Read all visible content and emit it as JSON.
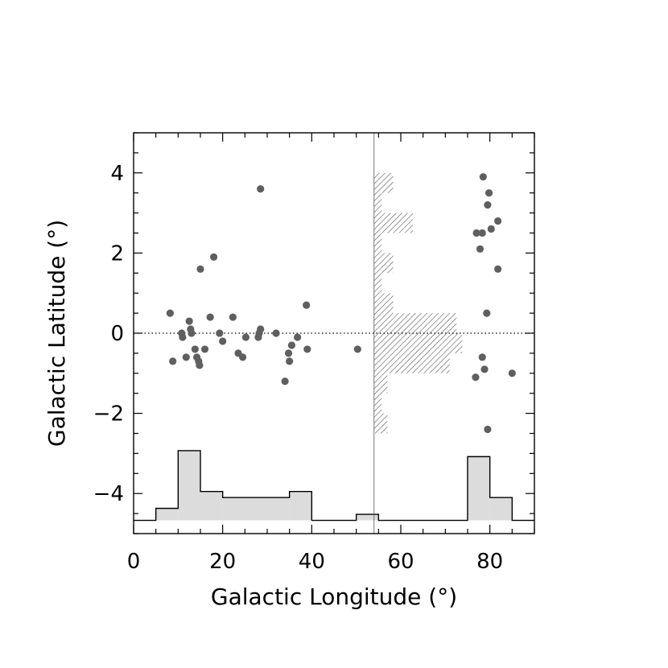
{
  "chart_data": {
    "type": "scatter",
    "xlabel": "Galactic Longitude (°)",
    "ylabel": "Galactic Latitude (°)",
    "xlim": [
      0,
      90
    ],
    "ylim": [
      -5,
      5
    ],
    "x_ticks": [
      0,
      20,
      40,
      60,
      80
    ],
    "x_tick_labels": [
      "0",
      "20",
      "40",
      "60",
      "80"
    ],
    "y_ticks": [
      -4,
      -2,
      0,
      2,
      4
    ],
    "y_tick_labels": [
      "−4",
      "−2",
      "0",
      "2",
      "4"
    ],
    "grid": false,
    "colors": {
      "points": "#5f5f5f",
      "longitude_histogram_fill": "#dcdcdc",
      "latitude_histogram_hatch": "#555555",
      "axes": "#000000"
    },
    "reference_lines": {
      "zero_latitude": 0,
      "vertical_divider_longitude": 54
    },
    "points": [
      {
        "x": 8.2,
        "y": 0.5
      },
      {
        "x": 8.8,
        "y": -0.7
      },
      {
        "x": 10.8,
        "y": 0.0
      },
      {
        "x": 11.0,
        "y": -0.1
      },
      {
        "x": 11.8,
        "y": -0.6
      },
      {
        "x": 12.5,
        "y": 0.3
      },
      {
        "x": 12.8,
        "y": 0.1
      },
      {
        "x": 13.0,
        "y": 0.0
      },
      {
        "x": 13.8,
        "y": -0.4
      },
      {
        "x": 14.2,
        "y": -0.6
      },
      {
        "x": 14.6,
        "y": -0.7
      },
      {
        "x": 14.8,
        "y": -0.8
      },
      {
        "x": 15.0,
        "y": 1.6
      },
      {
        "x": 16.0,
        "y": -0.4
      },
      {
        "x": 17.2,
        "y": 0.4
      },
      {
        "x": 18.0,
        "y": 1.9
      },
      {
        "x": 19.3,
        "y": 0.0
      },
      {
        "x": 20.0,
        "y": -0.2
      },
      {
        "x": 22.3,
        "y": 0.4
      },
      {
        "x": 23.5,
        "y": -0.5
      },
      {
        "x": 24.5,
        "y": -0.6
      },
      {
        "x": 25.2,
        "y": -0.1
      },
      {
        "x": 28.0,
        "y": -0.1
      },
      {
        "x": 28.2,
        "y": 0.0
      },
      {
        "x": 28.5,
        "y": 0.1
      },
      {
        "x": 28.5,
        "y": 3.6
      },
      {
        "x": 32.0,
        "y": 0.0
      },
      {
        "x": 34.0,
        "y": -1.2
      },
      {
        "x": 34.8,
        "y": -0.5
      },
      {
        "x": 35.0,
        "y": -0.7
      },
      {
        "x": 35.5,
        "y": -0.3
      },
      {
        "x": 36.8,
        "y": -0.1
      },
      {
        "x": 38.8,
        "y": 0.7
      },
      {
        "x": 39.0,
        "y": -0.4
      },
      {
        "x": 50.3,
        "y": -0.4
      },
      {
        "x": 76.8,
        "y": -1.1
      },
      {
        "x": 77.0,
        "y": 2.5
      },
      {
        "x": 77.8,
        "y": 2.1
      },
      {
        "x": 78.3,
        "y": 2.5
      },
      {
        "x": 78.3,
        "y": -0.6
      },
      {
        "x": 78.5,
        "y": 3.9
      },
      {
        "x": 78.8,
        "y": -0.9
      },
      {
        "x": 79.3,
        "y": 0.5
      },
      {
        "x": 79.5,
        "y": 3.2
      },
      {
        "x": 79.5,
        "y": -2.4
      },
      {
        "x": 79.8,
        "y": 3.5
      },
      {
        "x": 80.3,
        "y": 2.6
      },
      {
        "x": 81.8,
        "y": 2.8
      },
      {
        "x": 81.8,
        "y": 1.6
      },
      {
        "x": 85.0,
        "y": -1.0
      }
    ],
    "longitude_histogram": {
      "baseline_y": -4.67,
      "bins": [
        {
          "x0": 0,
          "x1": 5,
          "y": -4.67
        },
        {
          "x0": 5,
          "x1": 10,
          "y": -4.37
        },
        {
          "x0": 10,
          "x1": 15,
          "y": -2.93
        },
        {
          "x0": 15,
          "x1": 20,
          "y": -3.95
        },
        {
          "x0": 20,
          "x1": 35,
          "y": -4.1
        },
        {
          "x0": 35,
          "x1": 40,
          "y": -3.95
        },
        {
          "x0": 40,
          "x1": 50,
          "y": -4.67
        },
        {
          "x0": 50,
          "x1": 55,
          "y": -4.52
        },
        {
          "x0": 55,
          "x1": 75,
          "y": -4.67
        },
        {
          "x0": 75,
          "x1": 80,
          "y": -3.08
        },
        {
          "x0": 80,
          "x1": 85,
          "y": -4.1
        },
        {
          "x0": 85,
          "x1": 90,
          "y": -4.67
        }
      ]
    },
    "latitude_histogram": {
      "baseline_x": 54,
      "bins": [
        {
          "y0": 3.5,
          "y1": 4.0,
          "x": 58.3
        },
        {
          "y0": 3.0,
          "y1": 3.5,
          "x": 55.7
        },
        {
          "y0": 2.5,
          "y1": 3.0,
          "x": 62.7
        },
        {
          "y0": 2.0,
          "y1": 2.5,
          "x": 55.7
        },
        {
          "y0": 1.5,
          "y1": 2.0,
          "x": 58.3
        },
        {
          "y0": 1.0,
          "y1": 1.5,
          "x": 55.7
        },
        {
          "y0": 0.5,
          "y1": 1.0,
          "x": 58.3
        },
        {
          "y0": 0.0,
          "y1": 0.5,
          "x": 72.5
        },
        {
          "y0": -0.5,
          "y1": 0.0,
          "x": 73.8
        },
        {
          "y0": -1.0,
          "y1": -0.5,
          "x": 71.0
        },
        {
          "y0": -1.5,
          "y1": -1.0,
          "x": 57.0
        },
        {
          "y0": -2.0,
          "y1": -1.5,
          "x": 55.7
        },
        {
          "y0": -2.5,
          "y1": -2.0,
          "x": 57.0
        }
      ]
    }
  }
}
